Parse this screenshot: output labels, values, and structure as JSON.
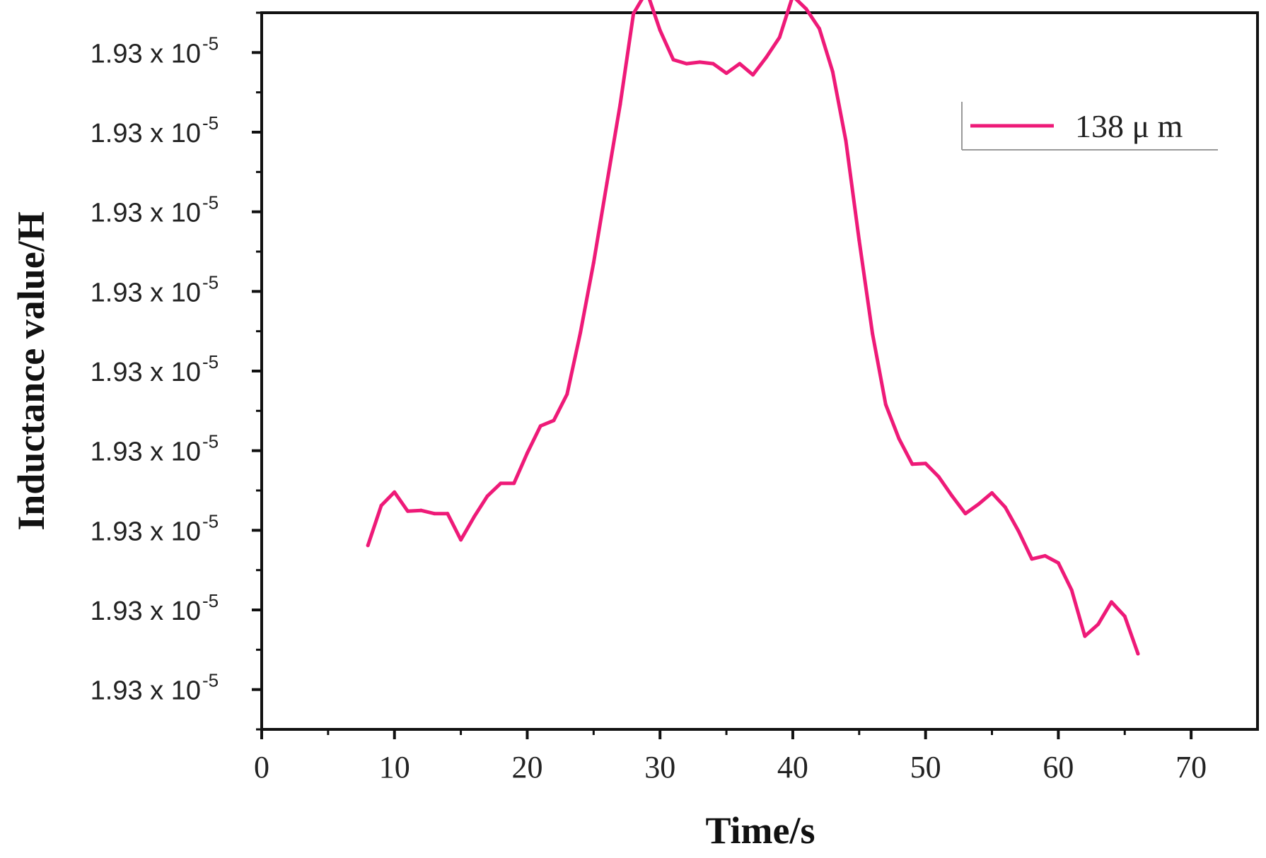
{
  "chart_data": {
    "type": "line",
    "xlabel": "Time/s",
    "ylabel": "Inductance value/H",
    "xlim": [
      0,
      75
    ],
    "x_ticks": [
      0,
      10,
      20,
      30,
      40,
      50,
      60,
      70
    ],
    "x_tick_labels": [
      "0",
      "10",
      "20",
      "30",
      "40",
      "50",
      "60",
      "70"
    ],
    "y_tick_labels": [
      {
        "mantissa": "1.93 x 10",
        "exponent": "-5"
      },
      {
        "mantissa": "1.93 x 10",
        "exponent": "-5"
      },
      {
        "mantissa": "1.93 x 10",
        "exponent": "-5"
      },
      {
        "mantissa": "1.93 x 10",
        "exponent": "-5"
      },
      {
        "mantissa": "1.93 x 10",
        "exponent": "-5"
      },
      {
        "mantissa": "1.93 x 10",
        "exponent": "-5"
      },
      {
        "mantissa": "1.93 x 10",
        "exponent": "-5"
      },
      {
        "mantissa": "1.93 x 10",
        "exponent": "-5"
      },
      {
        "mantissa": "1.93 x 10",
        "exponent": "-5"
      }
    ],
    "y_tick_index_range": [
      0,
      8
    ],
    "y_data_range": [
      -0.5,
      8.5
    ],
    "y_units_note": "y values expressed in major-tick steps from the bottom tick (tick labels are all 1.93 x 10^-5)",
    "grid": false,
    "legend_position": "top-right",
    "series": [
      {
        "name": "138 μ m",
        "color": "#ee1a78",
        "x": [
          8,
          9,
          10,
          11,
          12,
          13,
          14,
          15,
          16,
          17,
          18,
          19,
          20,
          21,
          22,
          23,
          24,
          25,
          26,
          27,
          28,
          29,
          30,
          31,
          32,
          33,
          34,
          35,
          36,
          37,
          38,
          39,
          40,
          41,
          42,
          43,
          44,
          45,
          46,
          47,
          48,
          49,
          50,
          51,
          52,
          53,
          54,
          55,
          56,
          57,
          58,
          59,
          60,
          61,
          62,
          63,
          64,
          65,
          66
        ],
        "y": [
          1.81,
          2.31,
          2.48,
          2.24,
          2.25,
          2.21,
          2.21,
          1.88,
          2.17,
          2.43,
          2.59,
          2.59,
          2.97,
          3.31,
          3.38,
          3.71,
          4.48,
          5.36,
          6.36,
          7.35,
          8.49,
          8.77,
          8.28,
          7.91,
          7.86,
          7.88,
          7.86,
          7.74,
          7.86,
          7.72,
          7.94,
          8.19,
          8.71,
          8.55,
          8.3,
          7.76,
          6.89,
          5.64,
          4.47,
          3.58,
          3.15,
          2.83,
          2.84,
          2.67,
          2.43,
          2.21,
          2.33,
          2.47,
          2.29,
          1.99,
          1.64,
          1.68,
          1.59,
          1.25,
          0.67,
          0.82,
          1.1,
          0.92,
          0.45
        ]
      }
    ]
  }
}
